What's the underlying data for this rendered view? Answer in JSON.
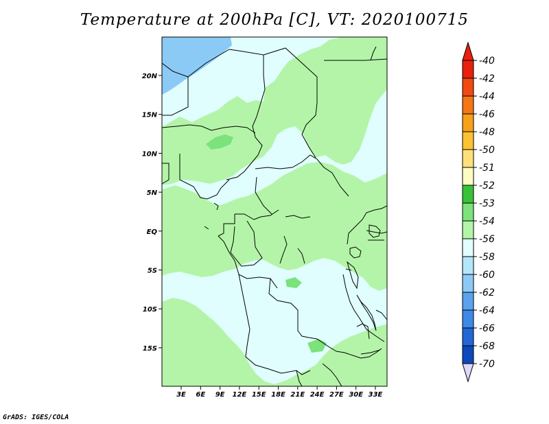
{
  "title": "Temperature at 200hPa [C], VT: 2020100715",
  "credit": "GrADS: IGES/COLA",
  "map": {
    "lat_labels": [
      "20N",
      "15N",
      "10N",
      "5N",
      "EQ",
      "5S",
      "10S",
      "15S"
    ],
    "lon_labels": [
      "3E",
      "6E",
      "9E",
      "12E",
      "15E",
      "18E",
      "21E",
      "24E",
      "27E",
      "30E",
      "33E"
    ]
  },
  "legend": {
    "levels": [
      {
        "label": "-40",
        "color": "#e8200c"
      },
      {
        "label": "-42",
        "color": "#f04a10"
      },
      {
        "label": "-44",
        "color": "#f47614"
      },
      {
        "label": "-46",
        "color": "#f8a018"
      },
      {
        "label": "-48",
        "color": "#fcc232"
      },
      {
        "label": "-50",
        "color": "#fde07a"
      },
      {
        "label": "-51",
        "color": "#fefcc0"
      },
      {
        "label": "-52",
        "color": "#38c238"
      },
      {
        "label": "-53",
        "color": "#7ce27c"
      },
      {
        "label": "-54",
        "color": "#b4f4a8"
      },
      {
        "label": "-56",
        "color": "#e0fefe"
      },
      {
        "label": "-58",
        "color": "#b4e6fa"
      },
      {
        "label": "-60",
        "color": "#8ccaf6"
      },
      {
        "label": "-62",
        "color": "#5aa2ee"
      },
      {
        "label": "-64",
        "color": "#3c8ae6"
      },
      {
        "label": "-66",
        "color": "#2266d8"
      },
      {
        "label": "-68",
        "color": "#0c48bc"
      },
      {
        "label": "-70",
        "color": "#0a1e7a"
      }
    ],
    "bottom_triangle_color": "#e0d8f8"
  },
  "colors": {
    "background": "#e0fefe",
    "green": "#b4f4a8",
    "dark_green": "#7ce27c",
    "blue": "#8ccaf6"
  }
}
